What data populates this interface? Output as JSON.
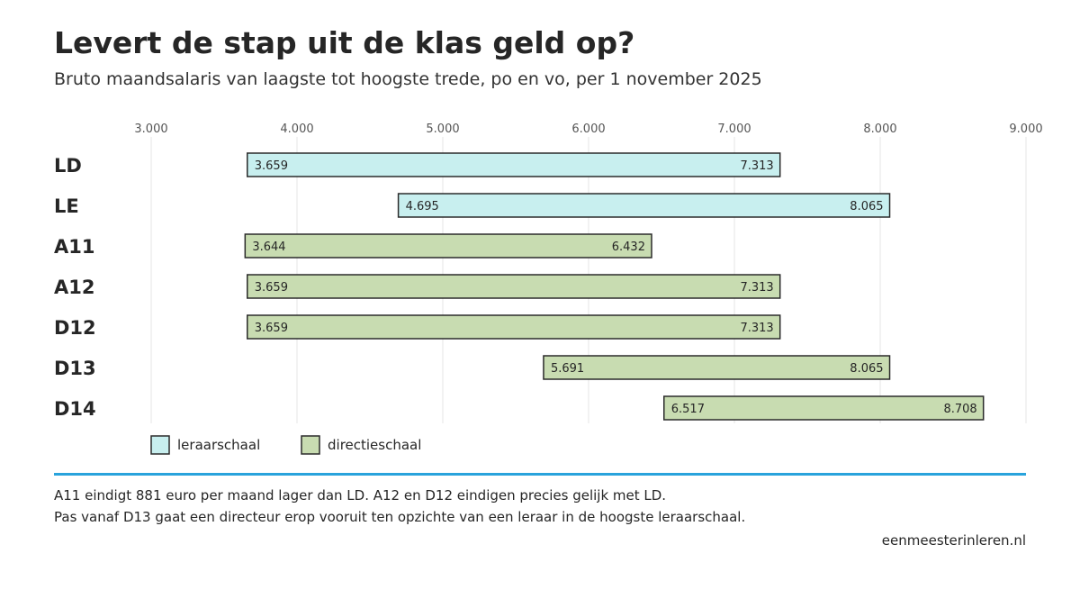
{
  "title": "Levert de stap uit de klas geld op?",
  "subtitle": "Bruto maandsalaris van laagste tot hoogste trede, po en vo, per 1 november 2025",
  "notes": [
    "A11 eindigt 881 euro per maand lager dan LD. A12 en D12 eindigen precies gelijk met LD.",
    "Pas vanaf D13 gaat een directeur erop vooruit ten opzichte van een leraar in de hoogste leraarschaal."
  ],
  "source": "eenmeesterinleren.nl",
  "colors": {
    "leraarschaal": "#c8efef",
    "directieschaal": "#c8dcb1",
    "accent_rule": "#29a3dc",
    "bar_border": "#2b2b2b",
    "grid": "#e6e6e6"
  },
  "chart_data": {
    "type": "bar",
    "orientation": "horizontal-range",
    "title": "Levert de stap uit de klas geld op?",
    "subtitle": "Bruto maandsalaris van laagste tot hoogste trede, po en vo, per 1 november 2025",
    "xlabel": "",
    "ylabel": "",
    "xlim": [
      3000,
      9000
    ],
    "ticks": [
      3000,
      4000,
      5000,
      6000,
      7000,
      8000,
      9000
    ],
    "tick_labels": [
      "3.000",
      "4.000",
      "5.000",
      "6.000",
      "7.000",
      "8.000",
      "9.000"
    ],
    "grid": true,
    "legend_position": "bottom-left",
    "legend": [
      {
        "key": "leraarschaal",
        "label": "leraarschaal"
      },
      {
        "key": "directieschaal",
        "label": "directieschaal"
      }
    ],
    "rows": [
      {
        "category": "LD",
        "group": "leraarschaal",
        "min": 3659,
        "max": 7313,
        "min_label": "3.659",
        "max_label": "7.313"
      },
      {
        "category": "LE",
        "group": "leraarschaal",
        "min": 4695,
        "max": 8065,
        "min_label": "4.695",
        "max_label": "8.065"
      },
      {
        "category": "A11",
        "group": "directieschaal",
        "min": 3644,
        "max": 6432,
        "min_label": "3.644",
        "max_label": "6.432"
      },
      {
        "category": "A12",
        "group": "directieschaal",
        "min": 3659,
        "max": 7313,
        "min_label": "3.659",
        "max_label": "7.313"
      },
      {
        "category": "D12",
        "group": "directieschaal",
        "min": 3659,
        "max": 7313,
        "min_label": "3.659",
        "max_label": "7.313"
      },
      {
        "category": "D13",
        "group": "directieschaal",
        "min": 5691,
        "max": 8065,
        "min_label": "5.691",
        "max_label": "8.065"
      },
      {
        "category": "D14",
        "group": "directieschaal",
        "min": 6517,
        "max": 8708,
        "min_label": "6.517",
        "max_label": "8.708"
      }
    ]
  }
}
